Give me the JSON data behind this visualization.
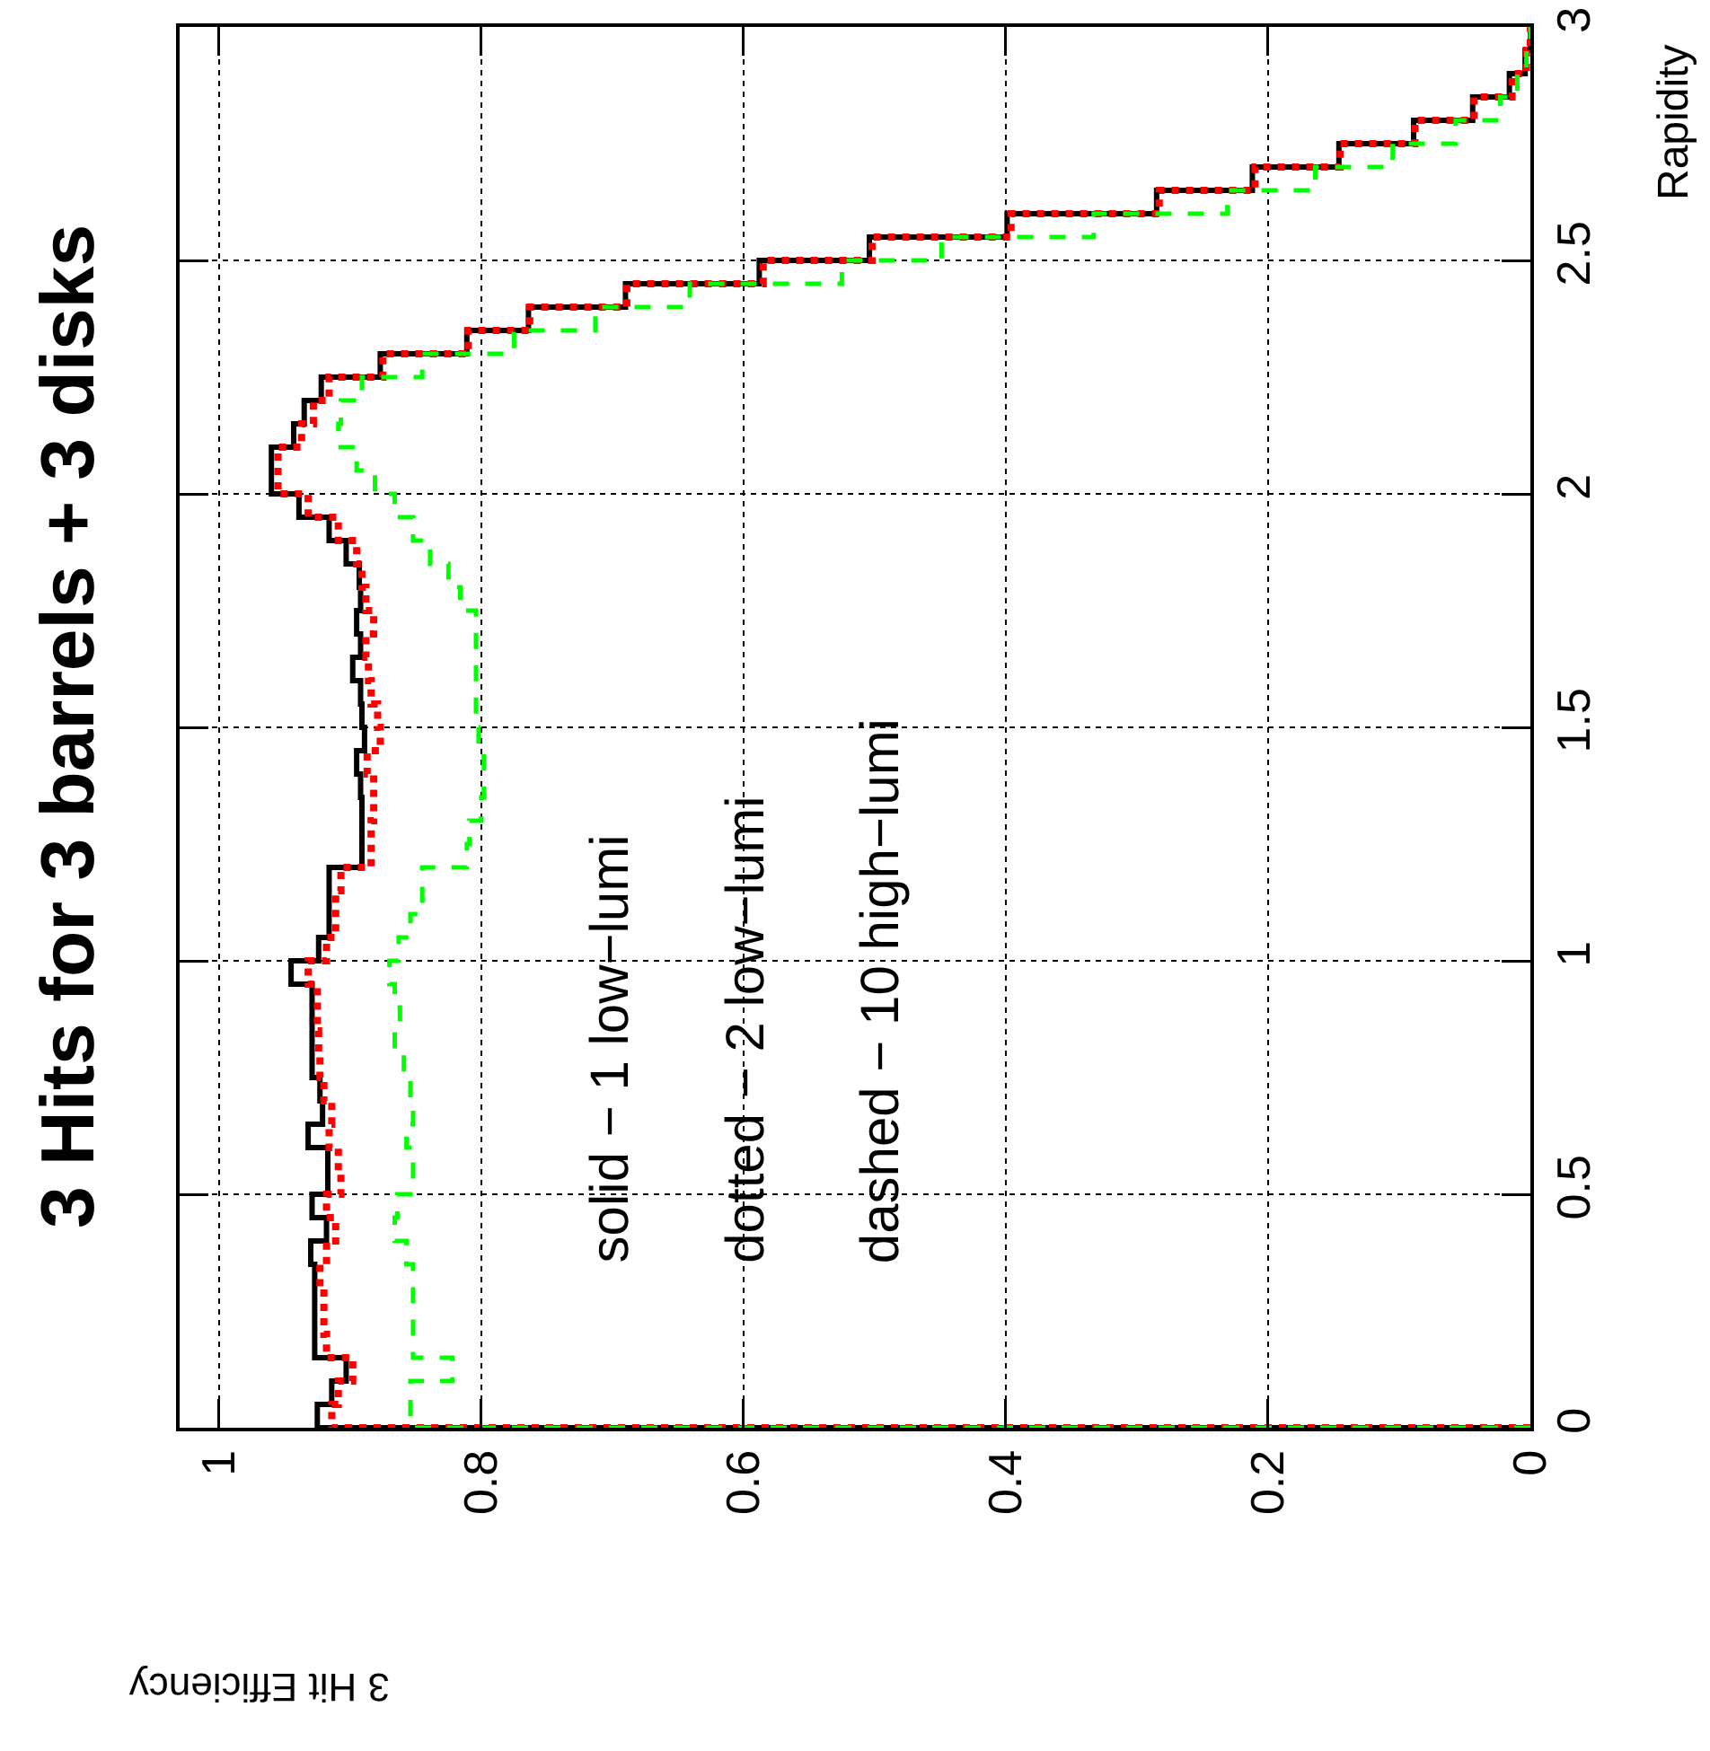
{
  "chart_data": {
    "type": "histogram",
    "title": "3 Hits for 3 barrels + 3 disks",
    "orientation": "horizontal",
    "xlabel": "3 Hit Efficiency",
    "ylabel": "Rapidity",
    "bins": [
      0,
      0.05,
      0.1,
      0.15,
      0.2,
      0.25,
      0.3,
      0.35,
      0.4,
      0.45,
      0.5,
      0.55,
      0.6,
      0.65,
      0.7,
      0.75,
      0.8,
      0.85,
      0.9,
      0.95,
      1,
      1.05,
      1.1,
      1.15,
      1.2,
      1.25,
      1.3,
      1.35,
      1.4,
      1.45,
      1.5,
      1.55,
      1.6,
      1.65,
      1.7,
      1.75,
      1.8,
      1.85,
      1.9,
      1.95,
      2,
      2.05,
      2.1,
      2.15,
      2.2,
      2.25,
      2.3,
      2.35,
      2.4,
      2.45,
      2.5,
      2.55,
      2.6,
      2.65,
      2.7,
      2.75,
      2.8,
      2.85,
      2.9,
      2.95,
      3
    ],
    "series": [
      {
        "color": "#000000",
        "line_style": "solid",
        "values": [
          0.925,
          0.914,
          0.903,
          0.927,
          0.927,
          0.927,
          0.927,
          0.93,
          0.918,
          0.929,
          0.917,
          0.917,
          0.932,
          0.921,
          0.923,
          0.929,
          0.929,
          0.929,
          0.929,
          0.945,
          0.924,
          0.916,
          0.916,
          0.916,
          0.891,
          0.891,
          0.891,
          0.892,
          0.895,
          0.889,
          0.891,
          0.892,
          0.898,
          0.892,
          0.895,
          0.892,
          0.893,
          0.903,
          0.916,
          0.939,
          0.96,
          0.96,
          0.943,
          0.935,
          0.922,
          0.877,
          0.811,
          0.764,
          0.69,
          0.588,
          0.504,
          0.399,
          0.285,
          0.212,
          0.146,
          0.089,
          0.044,
          0.016,
          0.004,
          0
        ]
      },
      {
        "color": "#ff0000",
        "line_style": "dotted",
        "values": [
          0.914,
          0.909,
          0.898,
          0.918,
          0.92,
          0.92,
          0.923,
          0.918,
          0.911,
          0.918,
          0.907,
          0.909,
          0.916,
          0.914,
          0.92,
          0.923,
          0.924,
          0.925,
          0.925,
          0.932,
          0.918,
          0.911,
          0.911,
          0.907,
          0.884,
          0.884,
          0.882,
          0.882,
          0.887,
          0.877,
          0.879,
          0.884,
          0.886,
          0.888,
          0.882,
          0.888,
          0.891,
          0.895,
          0.909,
          0.932,
          0.955,
          0.955,
          0.937,
          0.928,
          0.916,
          0.875,
          0.81,
          0.763,
          0.689,
          0.585,
          0.502,
          0.396,
          0.283,
          0.21,
          0.145,
          0.088,
          0.043,
          0.014,
          0.003,
          0
        ]
      },
      {
        "color": "#00ff00",
        "line_style": "dashed",
        "values": [
          0.854,
          0.854,
          0.822,
          0.852,
          0.852,
          0.852,
          0.852,
          0.857,
          0.866,
          0.864,
          0.852,
          0.852,
          0.857,
          0.852,
          0.854,
          0.859,
          0.866,
          0.862,
          0.866,
          0.87,
          0.863,
          0.854,
          0.845,
          0.845,
          0.811,
          0.809,
          0.8,
          0.798,
          0.798,
          0.802,
          0.804,
          0.804,
          0.804,
          0.804,
          0.804,
          0.816,
          0.825,
          0.839,
          0.852,
          0.866,
          0.881,
          0.895,
          0.909,
          0.907,
          0.891,
          0.845,
          0.775,
          0.713,
          0.641,
          0.525,
          0.449,
          0.333,
          0.231,
          0.164,
          0.105,
          0.057,
          0.023,
          0.01,
          0.003,
          0
        ]
      }
    ],
    "xlim": [
      1.03,
      0
    ],
    "ylim": [
      0,
      3
    ],
    "xticks": [
      0,
      0.2,
      0.4,
      0.6,
      0.8,
      1
    ],
    "yticks": [
      0,
      0.5,
      1,
      1.5,
      2,
      2.5,
      3
    ],
    "grid": true,
    "annotations": [
      "solid − 1 low−lumi",
      "dotted − 2 low−lumi",
      "dashed − 10 high−lumi"
    ]
  }
}
